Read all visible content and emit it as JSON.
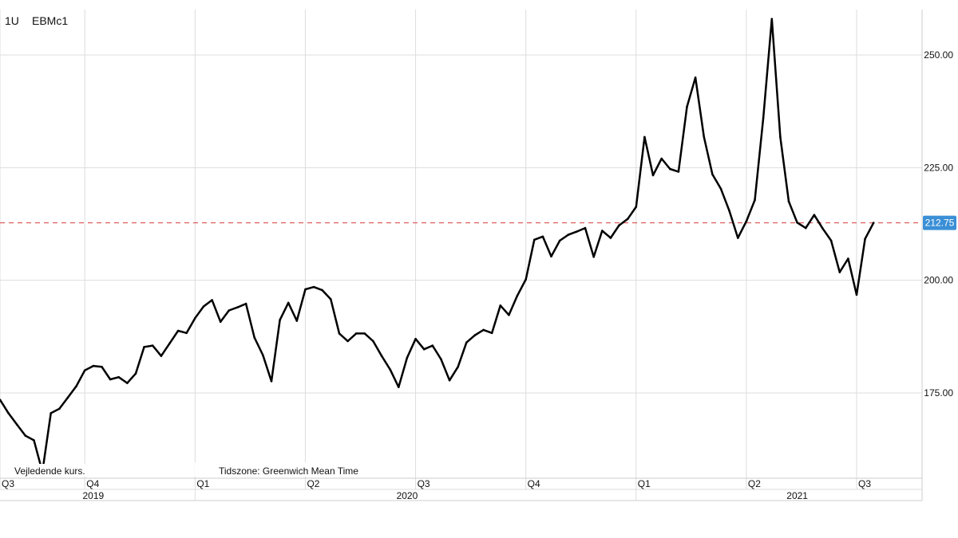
{
  "header": {
    "timeframe": "1U",
    "symbol": "EBMc1"
  },
  "footer_notes": {
    "left": "Vejledende kurs.",
    "right": "Tidszone: Greenwich Mean Time"
  },
  "current_price": {
    "label": "212.75",
    "value": 212.75,
    "color": "#3a8fd6",
    "line_color": "#d9534f"
  },
  "colors": {
    "series_line": "#000000",
    "grid": "#dddddd",
    "axis_text": "#111111"
  },
  "chart_data": {
    "type": "line",
    "title": "",
    "xlabel": "",
    "ylabel": "",
    "ylim": [
      155,
      260
    ],
    "yticks": [
      175,
      200,
      225,
      250
    ],
    "ytick_labels": [
      "175.00",
      "200.00",
      "225.00",
      "250.00"
    ],
    "grid": true,
    "quarters": [
      {
        "label": "Q3",
        "x": 0
      },
      {
        "label": "Q4",
        "x": 10
      },
      {
        "label": "Q1",
        "x": 23
      },
      {
        "label": "Q2",
        "x": 36
      },
      {
        "label": "Q3",
        "x": 49
      },
      {
        "label": "Q4",
        "x": 62
      },
      {
        "label": "Q1",
        "x": 75
      },
      {
        "label": "Q2",
        "x": 88
      },
      {
        "label": "Q3",
        "x": 101
      }
    ],
    "years": [
      {
        "label": "2019",
        "x": 11
      },
      {
        "label": "2020",
        "x": 48
      },
      {
        "label": "2021",
        "x": 94
      }
    ],
    "year_boundaries": [
      23,
      75
    ],
    "x_range": [
      0,
      108
    ],
    "series": [
      {
        "values": [
          173.5,
          170.5,
          168,
          165.5,
          164.5,
          157.5,
          170.5,
          171.5,
          174,
          176.5,
          180,
          181,
          180.8,
          178,
          178.5,
          177.2,
          179.3,
          185.2,
          185.5,
          183.2,
          186,
          188.8,
          188.3,
          191.6,
          194.2,
          195.6,
          190.8,
          193.3,
          194,
          194.8,
          187.3,
          183.4,
          177.6,
          191.2,
          195,
          191,
          198,
          198.5,
          197.8,
          195.8,
          188.2,
          186.5,
          188.2,
          188.2,
          186.5,
          183.2,
          180.2,
          176.3,
          182.8,
          187,
          184.7,
          185.5,
          182.5,
          177.8,
          180.8,
          186.2,
          187.8,
          189,
          188.3,
          194.4,
          192.3,
          196.6,
          200.2,
          209,
          209.7,
          205.3,
          208.8,
          210.1,
          210.8,
          211.6,
          205.2,
          211,
          209.4,
          212.2,
          213.6,
          216.3,
          231.8,
          223.3,
          227,
          224.7,
          224.1,
          238.5,
          245,
          231.8,
          223.5,
          220.3,
          215.4,
          209.4,
          213.1,
          217.8,
          236,
          258,
          231.8,
          217.5,
          212.8,
          211.6,
          214.5,
          211.5,
          208.8,
          201.8,
          204.8,
          196.8,
          209.2,
          212.75
        ]
      }
    ]
  }
}
